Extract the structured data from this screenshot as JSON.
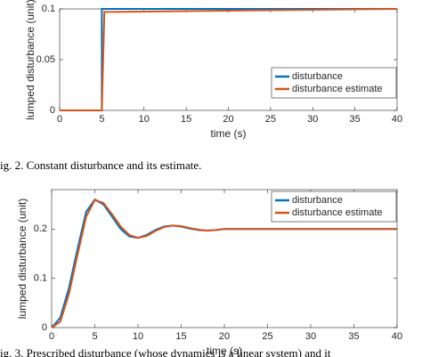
{
  "chart_data": [
    {
      "type": "line",
      "xlabel": "time (s)",
      "ylabel": "lumped disturbance (unit)",
      "x": [
        0,
        5,
        5,
        5.3,
        40
      ],
      "series": [
        {
          "name": "disturbance",
          "color": "#0072bd",
          "values": [
            0,
            0,
            0.1,
            0.1,
            0.1
          ]
        },
        {
          "name": "disturbance estimate",
          "color": "#d95319",
          "values": [
            0,
            0,
            0,
            0.097,
            0.1
          ]
        }
      ],
      "xlim": [
        0,
        40
      ],
      "xticks": [
        0,
        5,
        10,
        15,
        20,
        25,
        30,
        35,
        40
      ],
      "ylim": [
        0,
        0.1
      ],
      "yticks": [
        0,
        0.05,
        0.1
      ],
      "legend": "lower right"
    },
    {
      "type": "line",
      "xlabel": "time (s)",
      "ylabel": "lumped disturbance (unit)",
      "x": [
        0,
        1,
        2,
        3,
        4,
        5,
        6,
        7,
        8,
        9,
        10,
        11,
        12,
        13,
        14,
        15,
        16,
        17,
        18,
        19,
        20,
        25,
        30,
        35,
        40
      ],
      "series": [
        {
          "name": "disturbance",
          "color": "#0072bd",
          "values": [
            0,
            0.02,
            0.08,
            0.16,
            0.235,
            0.26,
            0.25,
            0.225,
            0.2,
            0.185,
            0.182,
            0.188,
            0.198,
            0.205,
            0.207,
            0.205,
            0.201,
            0.198,
            0.197,
            0.198,
            0.2,
            0.2,
            0.2,
            0.2,
            0.2
          ]
        },
        {
          "name": "disturbance estimate",
          "color": "#d95319",
          "values": [
            0,
            0.012,
            0.068,
            0.148,
            0.225,
            0.259,
            0.253,
            0.23,
            0.205,
            0.188,
            0.182,
            0.186,
            0.196,
            0.204,
            0.207,
            0.206,
            0.202,
            0.199,
            0.197,
            0.198,
            0.2,
            0.2,
            0.2,
            0.2,
            0.2
          ]
        }
      ],
      "xlim": [
        0,
        40
      ],
      "xticks": [
        0,
        5,
        10,
        15,
        20,
        25,
        30,
        35,
        40
      ],
      "ylim": [
        0,
        0.28
      ],
      "yticks": [
        0,
        0.1,
        0.2
      ],
      "legend": "upper right"
    }
  ],
  "captions": [
    "ig. 2.    Constant disturbance and its estimate.",
    "ig. 3.    Prescribed disturbance (whose dynamics is a linear system) and it"
  ]
}
